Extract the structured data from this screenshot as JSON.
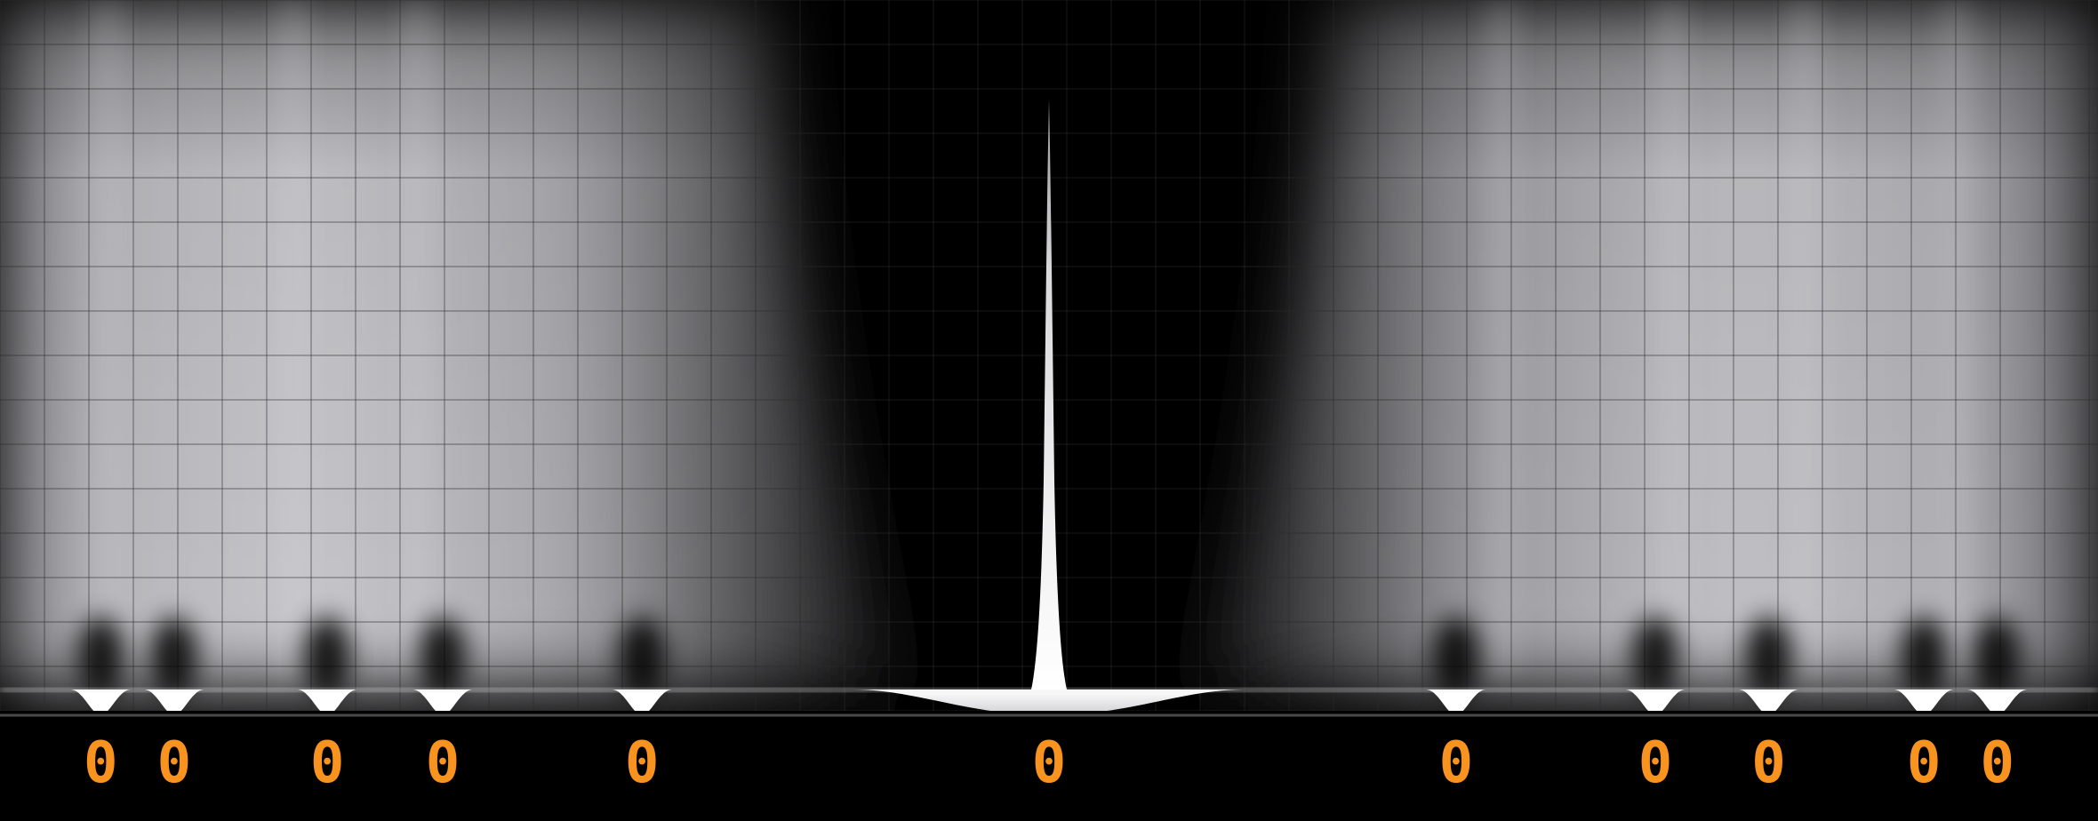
{
  "visualization": {
    "background_color": "#000000",
    "grid_color": "#2a2a2a",
    "haze_color": "#c8c8cc",
    "highlight_color": "#ffffff",
    "label_color": "#f7931e",
    "markers": [
      {
        "label": "0",
        "value": 0.048
      },
      {
        "label": "0",
        "value": 0.083
      },
      {
        "label": "0",
        "value": 0.156
      },
      {
        "label": "0",
        "value": 0.211
      },
      {
        "label": "0",
        "value": 0.306
      },
      {
        "label": "0",
        "value": 0.5
      },
      {
        "label": "0",
        "value": 0.694
      },
      {
        "label": "0",
        "value": 0.789
      },
      {
        "label": "0",
        "value": 0.843
      },
      {
        "label": "0",
        "value": 0.917
      },
      {
        "label": "0",
        "value": 0.952
      }
    ]
  }
}
